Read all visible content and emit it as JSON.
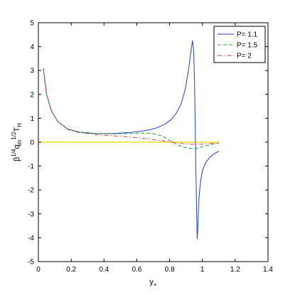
{
  "chart_data": {
    "type": "line",
    "title": "",
    "xlabel": "y",
    "xlabel_sub": "+",
    "ylabel": {
      "beta": "β",
      "exp1": "1/4",
      "q": "q",
      "sub_q": "m",
      "exp2": "1/2",
      "T": "T",
      "sub_T": "H"
    },
    "xlim": [
      0,
      1.4
    ],
    "ylim": [
      -5,
      5
    ],
    "xticks": [
      "0",
      "0.2",
      "0.4",
      "0.6",
      "0.8",
      "1",
      "1.2",
      "1.4"
    ],
    "xtick_values": [
      0,
      0.2,
      0.4,
      0.6,
      0.8,
      1.0,
      1.2,
      1.4
    ],
    "yticks": [
      "-5",
      "-4",
      "-3",
      "-2",
      "-1",
      "0",
      "1",
      "2",
      "3",
      "4",
      "5"
    ],
    "ytick_values": [
      -5,
      -4,
      -3,
      -2,
      -1,
      0,
      1,
      2,
      3,
      4,
      5
    ],
    "grid": false,
    "legend_position": "top-right",
    "series": [
      {
        "name": "P= 1.1",
        "color": "#1f3fd8",
        "dash": "solid",
        "x": [
          0.03,
          0.05,
          0.08,
          0.12,
          0.18,
          0.25,
          0.35,
          0.45,
          0.55,
          0.62,
          0.68,
          0.73,
          0.77,
          0.81,
          0.84,
          0.87,
          0.895,
          0.915,
          0.93,
          0.94,
          0.947,
          0.952,
          0.956,
          0.96,
          0.964,
          0.968,
          0.972,
          0.976,
          0.98,
          0.985,
          0.99,
          1.0,
          1.02,
          1.05,
          1.08,
          1.1
        ],
        "y": [
          3.1,
          2.0,
          1.3,
          0.85,
          0.55,
          0.42,
          0.36,
          0.36,
          0.4,
          0.45,
          0.52,
          0.62,
          0.75,
          0.95,
          1.2,
          1.6,
          2.2,
          3.0,
          3.8,
          4.25,
          3.8,
          2.5,
          0.8,
          -1.0,
          -2.6,
          -4.05,
          -3.6,
          -2.9,
          -2.3,
          -1.9,
          -1.6,
          -1.2,
          -0.85,
          -0.6,
          -0.45,
          -0.38
        ]
      },
      {
        "name": "P= 1.5",
        "color": "#2a9d2a",
        "dash": "dashed",
        "x": [
          0.03,
          0.05,
          0.08,
          0.12,
          0.18,
          0.25,
          0.35,
          0.45,
          0.55,
          0.62,
          0.68,
          0.72,
          0.76,
          0.8,
          0.84,
          0.88,
          0.92,
          0.96,
          1.0,
          1.04,
          1.08,
          1.1
        ],
        "y": [
          3.1,
          2.0,
          1.3,
          0.85,
          0.55,
          0.42,
          0.36,
          0.35,
          0.36,
          0.38,
          0.37,
          0.33,
          0.24,
          0.08,
          -0.08,
          -0.2,
          -0.26,
          -0.26,
          -0.2,
          -0.12,
          -0.06,
          -0.04
        ]
      },
      {
        "name": "P= 2",
        "color": "#e04040",
        "dash": "dashdot",
        "x": [
          0.03,
          0.05,
          0.08,
          0.12,
          0.18,
          0.25,
          0.35,
          0.45,
          0.55,
          0.62,
          0.68,
          0.72,
          0.76,
          0.8,
          0.84,
          0.88,
          0.92,
          0.96,
          1.0,
          1.04,
          1.08,
          1.1
        ],
        "y": [
          3.1,
          2.0,
          1.3,
          0.85,
          0.53,
          0.4,
          0.32,
          0.27,
          0.22,
          0.18,
          0.13,
          0.09,
          0.05,
          0.01,
          -0.03,
          -0.06,
          -0.08,
          -0.09,
          -0.08,
          -0.06,
          -0.04,
          -0.03
        ]
      },
      {
        "name": "",
        "color": "#f0e020",
        "dash": "solid",
        "x": [
          0.0,
          1.1
        ],
        "y": [
          0.0,
          0.0
        ]
      }
    ]
  }
}
